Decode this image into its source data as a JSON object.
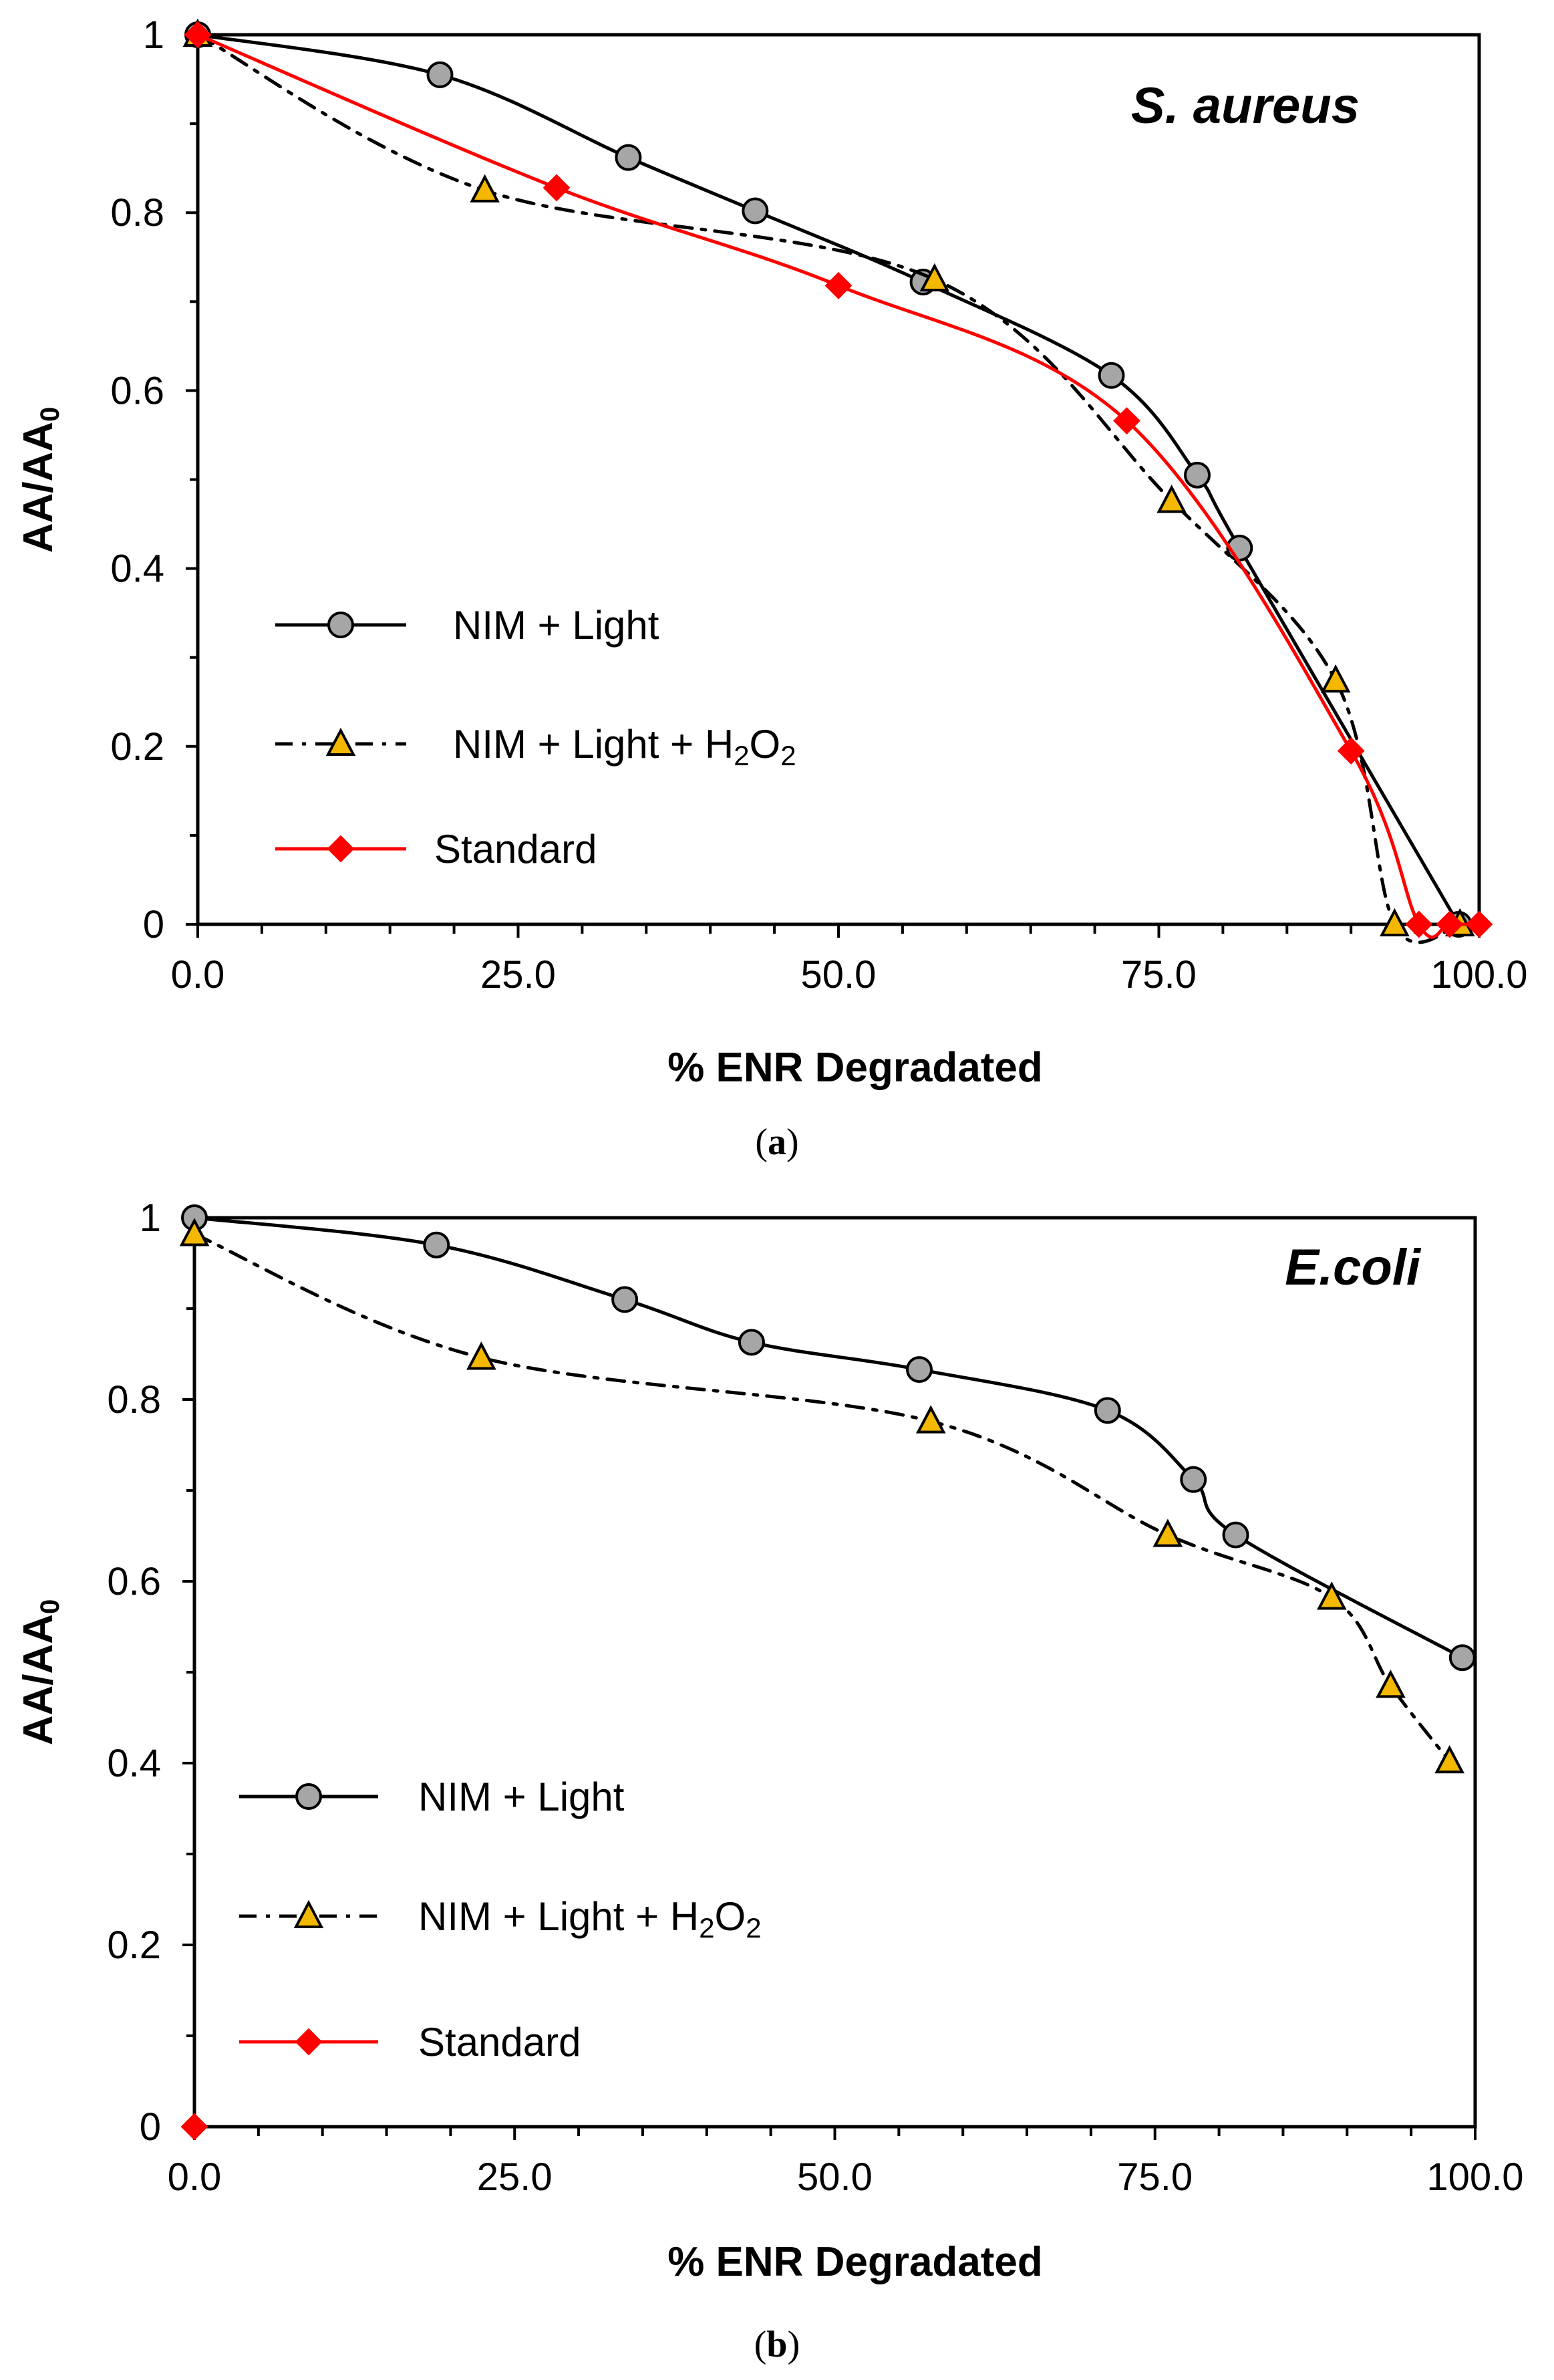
{
  "chart_data": [
    {
      "type": "line",
      "panel_label": "a",
      "caption_open": "(",
      "caption_close": ")",
      "title": "S. aureus",
      "xlabel": "% ENR Degradated",
      "ylabel_main": "AA/AA",
      "ylabel_sub": "0",
      "xlim": [
        0,
        100
      ],
      "ylim": [
        0,
        1
      ],
      "xticks": [
        0,
        25,
        50,
        75,
        100
      ],
      "xtick_labels": [
        "0.0",
        "25.0",
        "50.0",
        "75.0",
        "100.0"
      ],
      "yticks": [
        0,
        0.2,
        0.4,
        0.6,
        0.8,
        1
      ],
      "ytick_labels": [
        "0",
        "0.2",
        "0.4",
        "0.6",
        "0.8",
        "1"
      ],
      "series": [
        {
          "name": "NIM + Light",
          "color": "#000000",
          "dash": "solid",
          "marker": "circle",
          "marker_color": "#a6a6a6",
          "x": [
            0,
            18.9,
            33.6,
            43.5,
            56.6,
            71.3,
            78.0,
            81.3,
            98.4
          ],
          "y": [
            1.0,
            0.955,
            0.862,
            0.802,
            0.722,
            0.617,
            0.505,
            0.423,
            0.0
          ]
        },
        {
          "name": "NIM + Light + H2O2",
          "legend_parts": [
            "NIM + Light + H",
            "2",
            "O",
            "2"
          ],
          "color": "#000000",
          "dash": "dashdot",
          "marker": "triangle",
          "marker_color": "#f5b800",
          "x": [
            0,
            22.4,
            57.5,
            76.0,
            88.8,
            93.4,
            98.5
          ],
          "y": [
            1.0,
            0.825,
            0.725,
            0.476,
            0.274,
            0.0,
            0.0
          ]
        },
        {
          "name": "Standard",
          "color": "#ff0000",
          "dash": "solid",
          "marker": "diamond",
          "marker_color": "#ff0000",
          "x": [
            0,
            28.0,
            50.0,
            72.5,
            90.0,
            95.3,
            97.7,
            100.0
          ],
          "y": [
            1.0,
            0.828,
            0.718,
            0.566,
            0.195,
            0.0,
            0.0,
            0.0
          ]
        }
      ]
    },
    {
      "type": "line",
      "panel_label": "b",
      "caption_open": "(",
      "caption_close": ")",
      "title": "E.coli",
      "xlabel": "% ENR Degradated",
      "ylabel_main": "AA/AA",
      "ylabel_sub": "0",
      "xlim": [
        0,
        100
      ],
      "ylim": [
        0,
        1
      ],
      "xticks": [
        0,
        25,
        50,
        75,
        100
      ],
      "xtick_labels": [
        "0.0",
        "25.0",
        "50.0",
        "75.0",
        "100.0"
      ],
      "yticks": [
        0,
        0.2,
        0.4,
        0.6,
        0.8,
        1
      ],
      "ytick_labels": [
        "0",
        "0.2",
        "0.4",
        "0.6",
        "0.8",
        "1"
      ],
      "series": [
        {
          "name": "NIM + Light",
          "color": "#000000",
          "dash": "solid",
          "marker": "circle",
          "marker_color": "#a6a6a6",
          "x": [
            0,
            18.9,
            33.6,
            43.5,
            56.6,
            71.3,
            78.0,
            81.3,
            99.0
          ],
          "y": [
            1.0,
            0.97,
            0.91,
            0.863,
            0.833,
            0.788,
            0.712,
            0.651,
            0.516
          ]
        },
        {
          "name": "NIM + Light + H2O2",
          "legend_parts": [
            "NIM + Light + H",
            "2",
            "O",
            "2"
          ],
          "color": "#000000",
          "dash": "dashdot",
          "marker": "triangle",
          "marker_color": "#f5b800",
          "x": [
            0,
            22.4,
            57.5,
            76.0,
            88.8,
            93.4,
            98.0
          ],
          "y": [
            0.982,
            0.846,
            0.776,
            0.651,
            0.582,
            0.485,
            0.402
          ]
        },
        {
          "name": "Standard",
          "color": "#ff0000",
          "dash": "solid",
          "marker": "diamond",
          "marker_color": "#ff0000",
          "x": [
            0
          ],
          "y": [
            0.0
          ]
        }
      ]
    }
  ]
}
